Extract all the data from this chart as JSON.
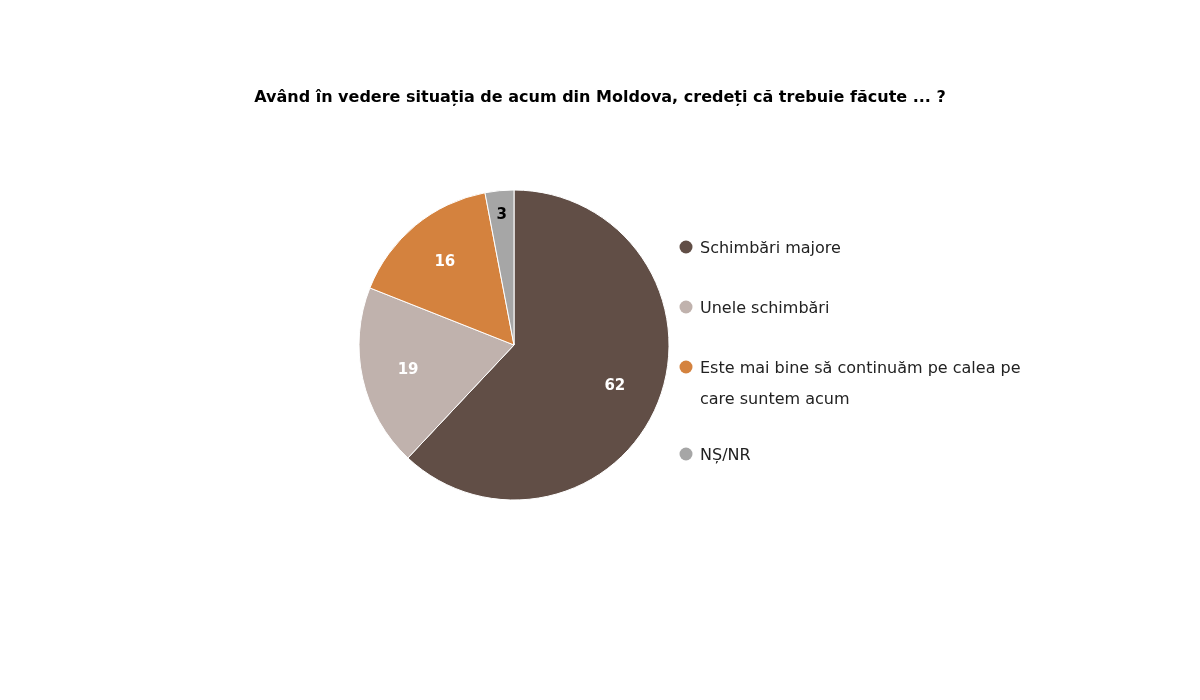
{
  "chart_data": {
    "type": "pie",
    "title": "Având în vedere situația de acum din Moldova, credeți că trebuie făcute ... ?",
    "categories": [
      "Schimbări majore",
      "Unele schimbări",
      "Este mai bine să continuăm pe calea pe care suntem acum",
      "NȘ/NR"
    ],
    "values": [
      62,
      19,
      16,
      3
    ],
    "colors": [
      "#614e46",
      "#c0b2ad",
      "#d4823e",
      "#a6a6a6"
    ],
    "data_labels": true,
    "legend": "right"
  }
}
